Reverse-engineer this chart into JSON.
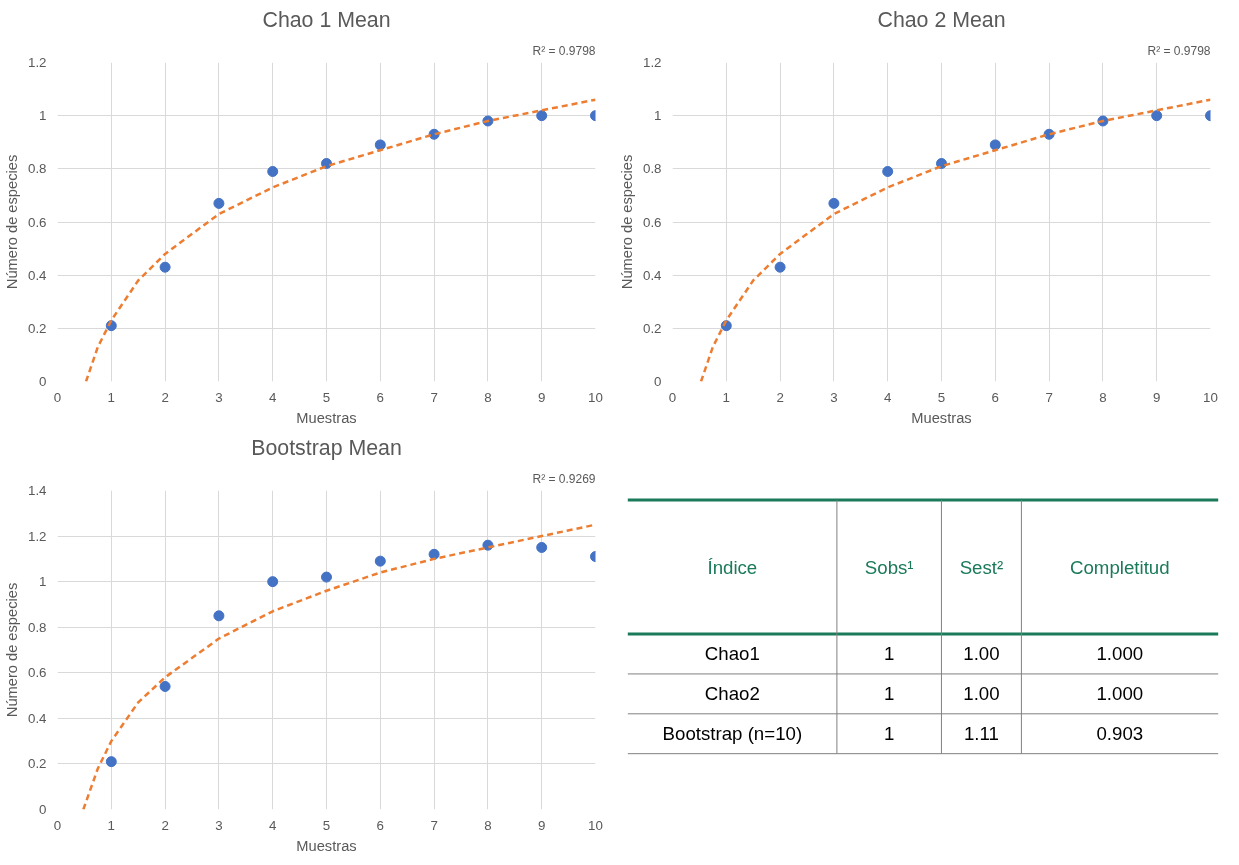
{
  "chart_data": [
    {
      "type": "scatter",
      "title": "Chao 1 Mean",
      "xlabel": "Muestras",
      "ylabel": "Número de especies",
      "annotations": [
        "R² = 0.9798"
      ],
      "xlim": [
        0,
        10
      ],
      "ylim": [
        0,
        1.2
      ],
      "xticks": [
        0,
        1,
        2,
        3,
        4,
        5,
        6,
        7,
        8,
        9,
        10
      ],
      "yticks": [
        0,
        0.2,
        0.4,
        0.6,
        0.8,
        1,
        1.2
      ],
      "grid": true,
      "series": [
        {
          "type": "scatter",
          "marker": "circle",
          "color": "#4472c4",
          "x": [
            1,
            2,
            3,
            4,
            5,
            6,
            7,
            8,
            9,
            10
          ],
          "values": [
            0.21,
            0.43,
            0.67,
            0.79,
            0.82,
            0.89,
            0.93,
            0.98,
            1.0,
            1.0
          ]
        },
        {
          "type": "line",
          "marker": "none",
          "line_style": "dashed",
          "color": "#ed7d31",
          "x": [
            0.53,
            0.75,
            1,
            1.5,
            2,
            3,
            4,
            5,
            6,
            7,
            8,
            9,
            10
          ],
          "values": [
            0,
            0.13,
            0.23,
            0.38,
            0.48,
            0.63,
            0.73,
            0.81,
            0.87,
            0.93,
            0.98,
            1.02,
            1.06
          ]
        }
      ]
    },
    {
      "type": "scatter",
      "title": "Chao 2 Mean",
      "xlabel": "Muestras",
      "ylabel": "Número de especies",
      "annotations": [
        "R² = 0.9798"
      ],
      "xlim": [
        0,
        10
      ],
      "ylim": [
        0,
        1.2
      ],
      "xticks": [
        0,
        1,
        2,
        3,
        4,
        5,
        6,
        7,
        8,
        9,
        10
      ],
      "yticks": [
        0,
        0.2,
        0.4,
        0.6,
        0.8,
        1,
        1.2
      ],
      "grid": true,
      "series": [
        {
          "type": "scatter",
          "marker": "circle",
          "color": "#4472c4",
          "x": [
            1,
            2,
            3,
            4,
            5,
            6,
            7,
            8,
            9,
            10
          ],
          "values": [
            0.21,
            0.43,
            0.67,
            0.79,
            0.82,
            0.89,
            0.93,
            0.98,
            1.0,
            1.0
          ]
        },
        {
          "type": "line",
          "marker": "none",
          "line_style": "dashed",
          "color": "#ed7d31",
          "x": [
            0.53,
            0.75,
            1,
            1.5,
            2,
            3,
            4,
            5,
            6,
            7,
            8,
            9,
            10
          ],
          "values": [
            0,
            0.13,
            0.23,
            0.38,
            0.48,
            0.63,
            0.73,
            0.81,
            0.87,
            0.93,
            0.98,
            1.02,
            1.06
          ]
        }
      ]
    },
    {
      "type": "scatter",
      "title": "Bootstrap Mean",
      "xlabel": "Muestras",
      "ylabel": "Número de especies",
      "annotations": [
        "R² = 0.9269"
      ],
      "xlim": [
        0,
        10
      ],
      "ylim": [
        0,
        1.4
      ],
      "xticks": [
        0,
        1,
        2,
        3,
        4,
        5,
        6,
        7,
        8,
        9,
        10
      ],
      "yticks": [
        0,
        0.2,
        0.4,
        0.6,
        0.8,
        1,
        1.2,
        1.4
      ],
      "grid": true,
      "series": [
        {
          "type": "scatter",
          "marker": "circle",
          "color": "#4472c4",
          "x": [
            1,
            2,
            3,
            4,
            5,
            6,
            7,
            8,
            9,
            10
          ],
          "values": [
            0.21,
            0.54,
            0.85,
            1.0,
            1.02,
            1.09,
            1.12,
            1.16,
            1.15,
            1.11
          ]
        },
        {
          "type": "line",
          "marker": "none",
          "line_style": "dashed",
          "color": "#ed7d31",
          "x": [
            0.48,
            0.75,
            1,
            1.5,
            2,
            3,
            4,
            5,
            6,
            7,
            8,
            9,
            10
          ],
          "values": [
            0,
            0.18,
            0.3,
            0.47,
            0.58,
            0.75,
            0.87,
            0.96,
            1.04,
            1.1,
            1.15,
            1.2,
            1.25
          ]
        }
      ]
    },
    {
      "type": "other",
      "categories": [
        "Índice",
        "Sobs¹",
        "Sest²",
        "Completitud"
      ],
      "y_categories": [
        "Chao1",
        "Chao2",
        "Bootstrap (n=10)"
      ],
      "cell_labels": [
        [
          "1",
          "1.00",
          "1.000"
        ],
        [
          "1",
          "1.00",
          "1.000"
        ],
        [
          "1",
          "1.11",
          "0.903"
        ]
      ]
    }
  ]
}
